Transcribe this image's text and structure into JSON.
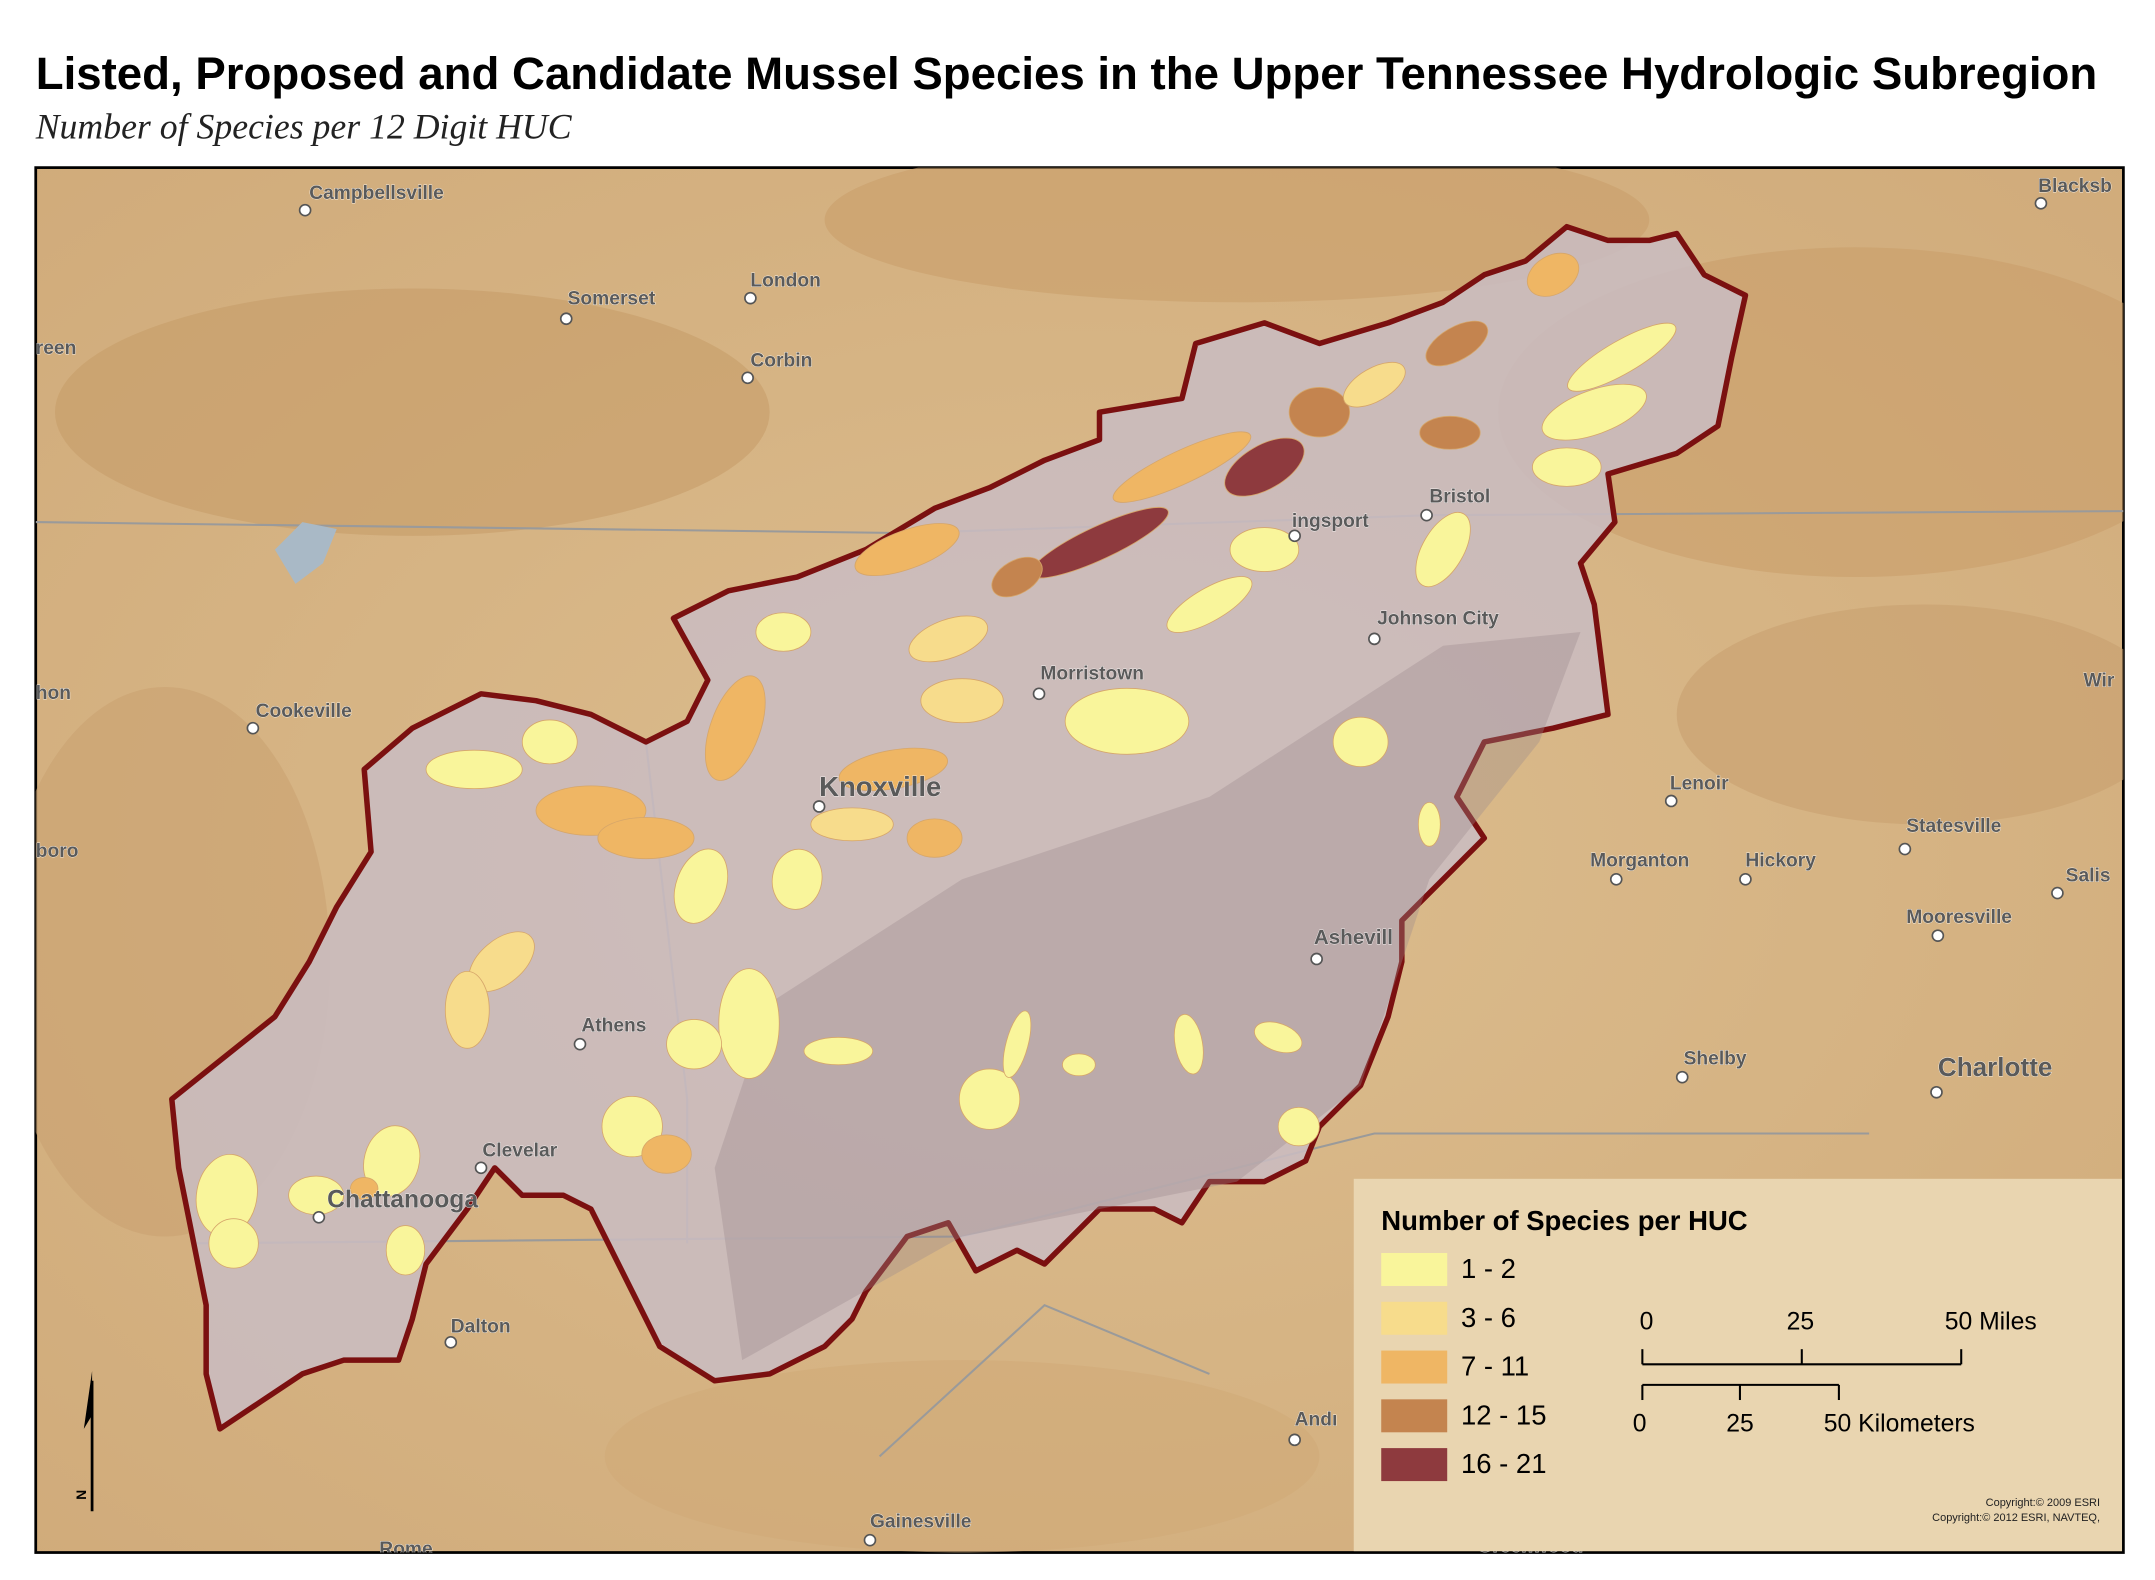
{
  "header": {
    "title": "Listed, Proposed and Candidate Mussel Species in the Upper Tennessee Hydrologic Subregion",
    "subtitle": "Number of  Species per 12 Digit HUC"
  },
  "cities": [
    "Campbellsville",
    "Somerset",
    "London",
    "Corbin",
    "reen",
    "Cookeville",
    "hon",
    "boro",
    "Knoxville",
    "Morristown",
    "Bristol",
    "ingsport",
    "Johnson City",
    "Lenoir",
    "Morganton",
    "Hickory",
    "Statesville",
    "Salis",
    "Mooresville",
    "Ashevill",
    "Athens",
    "Shelby",
    "Charlotte",
    "Clevelar",
    "Chattanooga",
    "Dalton",
    "Andı",
    "Gainesville",
    "Rome",
    "Greenwood",
    "Blacksb",
    "Wir"
  ],
  "legend": {
    "title": "Number of Species per HUC",
    "items": [
      {
        "label": "1 - 2",
        "color": "#f9f59b"
      },
      {
        "label": "3 - 6",
        "color": "#f7dc8c"
      },
      {
        "label": "7 - 11",
        "color": "#efb664"
      },
      {
        "label": "12 - 15",
        "color": "#c4844f"
      },
      {
        "label": "16 - 21",
        "color": "#8e3a3e"
      }
    ]
  },
  "scale_bar": {
    "miles": [
      "0",
      "25",
      "50 Miles"
    ],
    "kilometers": [
      "0",
      "25",
      "50 Kilometers"
    ]
  },
  "north_label": "N",
  "copyright": [
    "Copyright:© 2009 ESRI",
    "Copyright:© 2012 ESRI, NAVTEQ,"
  ]
}
